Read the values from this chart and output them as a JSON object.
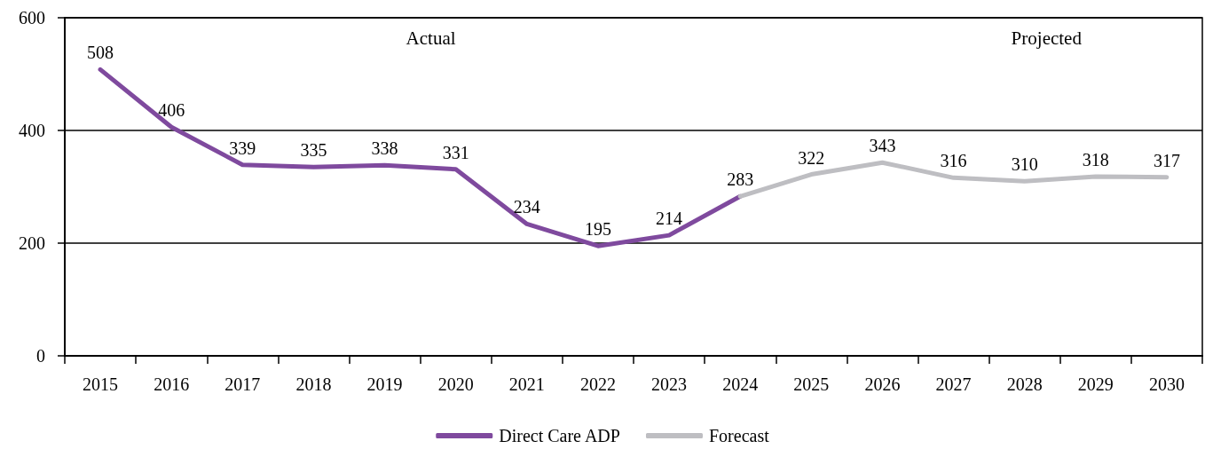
{
  "chart_data": {
    "type": "line",
    "categories": [
      "2015",
      "2016",
      "2017",
      "2018",
      "2019",
      "2020",
      "2021",
      "2022",
      "2023",
      "2024",
      "2025",
      "2026",
      "2027",
      "2028",
      "2029",
      "2030"
    ],
    "series": [
      {
        "name": "Direct Care ADP",
        "color": "#7f4a9e",
        "values": [
          508,
          406,
          339,
          335,
          338,
          331,
          234,
          195,
          214,
          283,
          null,
          null,
          null,
          null,
          null,
          null
        ],
        "value_labels": [
          "508",
          "406",
          "339",
          "335",
          "338",
          "331",
          "234",
          "195",
          "214",
          "283",
          null,
          null,
          null,
          null,
          null,
          null
        ]
      },
      {
        "name": "Forecast",
        "color": "#bebec2",
        "values": [
          null,
          null,
          null,
          null,
          null,
          null,
          null,
          null,
          null,
          283,
          322,
          343,
          316,
          310,
          318,
          317
        ],
        "value_labels": [
          null,
          null,
          null,
          null,
          null,
          null,
          null,
          null,
          null,
          null,
          "322",
          "343",
          "316",
          "310",
          "318",
          "317"
        ]
      }
    ],
    "ylim": [
      0,
      600
    ],
    "yticks": [
      0,
      200,
      400,
      600
    ],
    "grid": "y",
    "legend": "bottom",
    "marker": "none",
    "line_style": "solid",
    "annotations": [
      "Actual",
      "Projected"
    ]
  }
}
